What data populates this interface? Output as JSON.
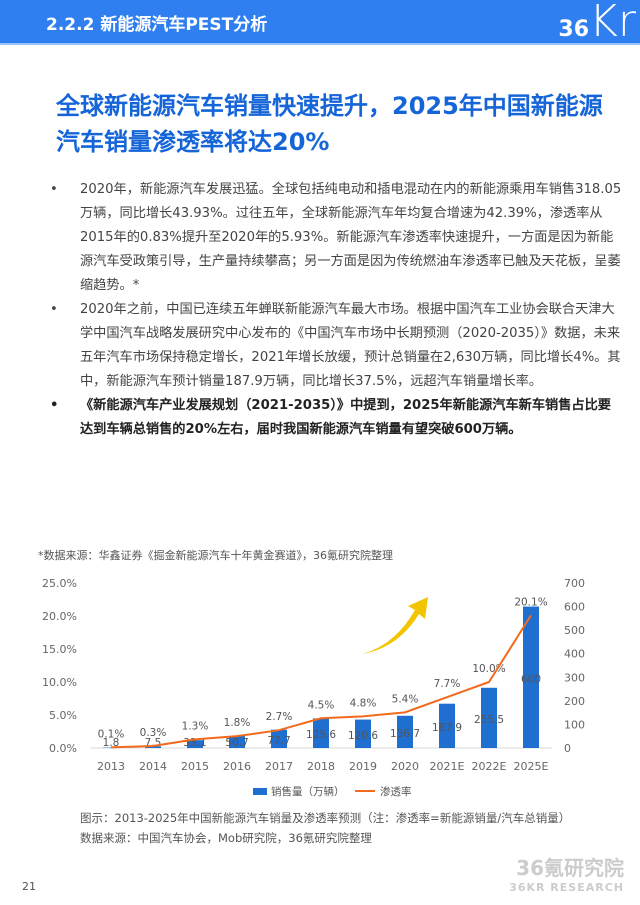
{
  "header": {
    "title": "2.2.2 新能源汽车PEST分析",
    "logo": "36Kr"
  },
  "headline": "全球新能源汽车销量快速提升，2025年中国新能源汽车销量渗透率将达20%",
  "bullets": [
    "2020年，新能源汽车发展迅猛。全球包括纯电动和插电混动在内的新能源乘用车销售318.05万辆，同比增长43.93%。过往五年，全球新能源汽车年均复合增速为42.39%，渗透率从2015年的0.83%提升至2020年的5.93%。新能源汽车渗透率快速提升，一方面是因为新能源汽车受政策引导，生产量持续攀高；另一方面是因为传统燃油车渗透率已触及天花板，呈萎缩趋势。*",
    "2020年之前，中国已连续五年蝉联新能源汽车最大市场。根据中国汽车工业协会联合天津大学中国汽车战略发展研究中心发布的《中国汽车市场中长期预测（2020-2035）》数据，未来五年汽车市场保持稳定增长，2021年增长放缓，预计总销量在2,630万辆，同比增长4%。其中，新能源汽车预计销量187.9万辆，同比增长37.5%，远超汽车销量增长率。",
    "《新能源汽车产业发展规划（2021-2035）》中提到，2025年新能源汽车新车销售占比要达到车辆总销售的20%左右，届时我国新能源汽车销量有望突破600万辆。"
  ],
  "source_note": "*数据来源：华鑫证券《掘金新能源汽车十年黄金赛道》，36氪研究院整理",
  "chart_data": {
    "type": "bar+line",
    "categories": [
      "2013",
      "2014",
      "2015",
      "2016",
      "2017",
      "2018",
      "2019",
      "2020",
      "2021E",
      "2022E",
      "2025E"
    ],
    "series": [
      {
        "name": "销售量（万辆）",
        "type": "bar",
        "axis": "right",
        "color": "#1f6fd0",
        "values": [
          1.8,
          7.5,
          33.1,
          50.7,
          77.7,
          125.6,
          120.6,
          136.7,
          187.9,
          255.5,
          600
        ]
      },
      {
        "name": "渗透率",
        "type": "line",
        "axis": "left",
        "color": "#f26b1d",
        "values": [
          0.1,
          0.3,
          1.3,
          1.8,
          2.7,
          4.5,
          4.8,
          5.4,
          7.7,
          10.0,
          20.1
        ]
      }
    ],
    "left_axis": {
      "range": [
        0,
        25
      ],
      "ticks": [
        "0.0%",
        "5.0%",
        "10.0%",
        "15.0%",
        "20.0%",
        "25.0%"
      ]
    },
    "right_axis": {
      "range": [
        0,
        700
      ],
      "ticks": [
        "0",
        "100",
        "200",
        "300",
        "400",
        "500",
        "600",
        "700"
      ]
    },
    "legend_placement": "bottom",
    "arrow_color": "#f2c500"
  },
  "caption": [
    "图示：2013-2025年中国新能源汽车销量及渗透率预测（注：渗透率=新能源销量/汽车总销量）",
    "数据来源：中国汽车协会，Mob研究院，36氪研究院整理"
  ],
  "page_number": "21",
  "watermark": [
    "36氪研究院",
    "36KR RESEARCH"
  ]
}
